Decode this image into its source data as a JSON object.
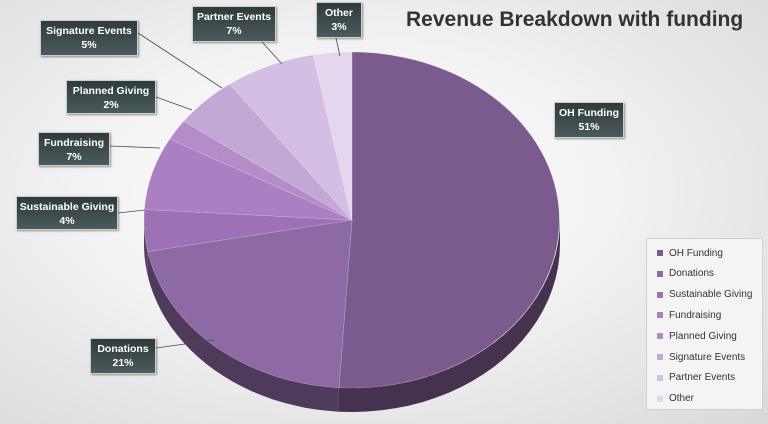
{
  "chart_data": {
    "type": "pie",
    "title": "Revenue Breakdown with funding",
    "categories": [
      "OH Funding",
      "Donations",
      "Sustainable Giving",
      "Fundraising",
      "Planned Giving",
      "Signature Events",
      "Partner Events",
      "Other"
    ],
    "values": [
      51,
      21,
      4,
      7,
      2,
      5,
      7,
      3
    ],
    "value_labels": [
      "51%",
      "21%",
      "4%",
      "7%",
      "2%",
      "5%",
      "7%",
      "3%"
    ],
    "colors": [
      "#7b5b8e",
      "#8d6aa4",
      "#9d72b4",
      "#aa80c2",
      "#b38cc8",
      "#c3a8d6",
      "#d2bfe3",
      "#e3d6ee"
    ],
    "style": "3d",
    "legend_position": "bottom-right",
    "data_labels": "callout"
  }
}
